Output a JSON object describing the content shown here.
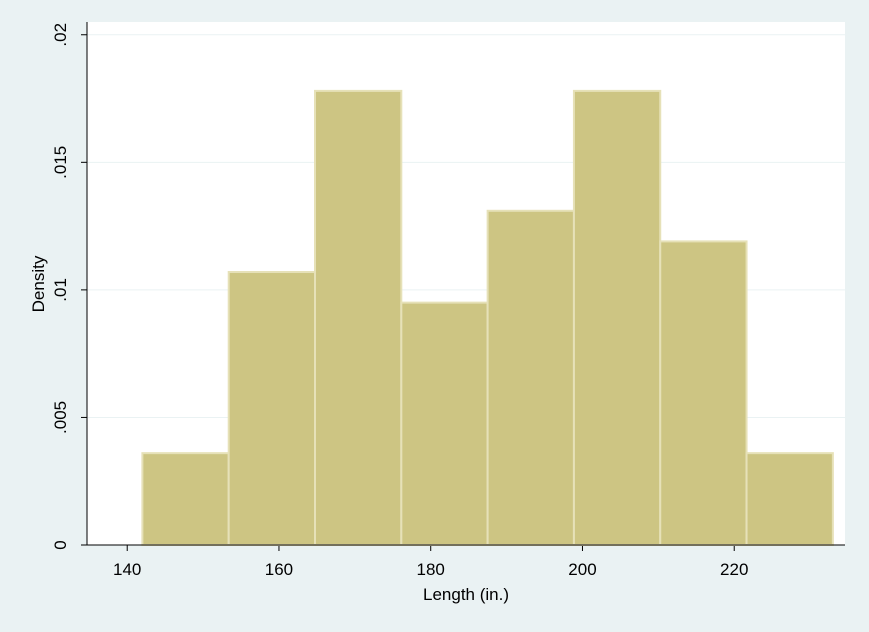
{
  "chart_data": {
    "type": "histogram",
    "x_label": "Length (in.)",
    "y_label": "Density",
    "bins": [
      142,
      153.375,
      164.75,
      176.125,
      187.5,
      198.875,
      210.25,
      221.625,
      233
    ],
    "values": [
      0.0036,
      0.0107,
      0.0178,
      0.0095,
      0.0131,
      0.0178,
      0.0119,
      0.0036
    ],
    "color": "#cdc583",
    "xlim": [
      134.7,
      234.6
    ],
    "xticks": [
      140,
      160,
      180,
      200,
      220
    ],
    "ylim": [
      0,
      0.0205
    ],
    "yticks": [
      0,
      {
        "value": 0.005,
        "label": ".005"
      },
      {
        "value": 0.01,
        "label": ".01"
      },
      {
        "value": 0.015,
        "label": ".015"
      },
      {
        "value": 0.02,
        "label": ".02"
      }
    ],
    "grid": true
  }
}
